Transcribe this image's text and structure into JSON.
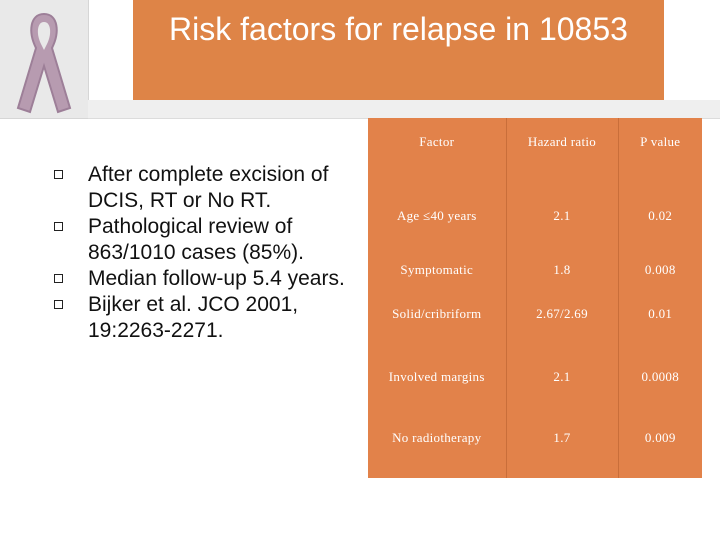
{
  "slide": {
    "title": "Risk factors for relapse in 10853",
    "logo_icon": "awareness-ribbon-icon",
    "accent_color": "#de8447"
  },
  "bullets": [
    "After complete excision of DCIS, RT or No RT.",
    "Pathological review of 863/1010 cases (85%).",
    "Median follow-up 5.4 years.",
    "Bijker et al. JCO 2001, 19:2263-2271."
  ],
  "table": {
    "headers": [
      "Factor",
      "Hazard ratio",
      "P value"
    ],
    "rows": [
      [
        "Age ≤40 years",
        "2.1",
        "0.02"
      ],
      [
        "Symptomatic",
        "1.8",
        "0.008"
      ],
      [
        "Solid/cribriform",
        "2.67/2.69",
        "0.01"
      ],
      [
        "Involved margins",
        "2.1",
        "0.0008"
      ],
      [
        "No radiotherapy",
        "1.7",
        "0.009"
      ]
    ]
  }
}
